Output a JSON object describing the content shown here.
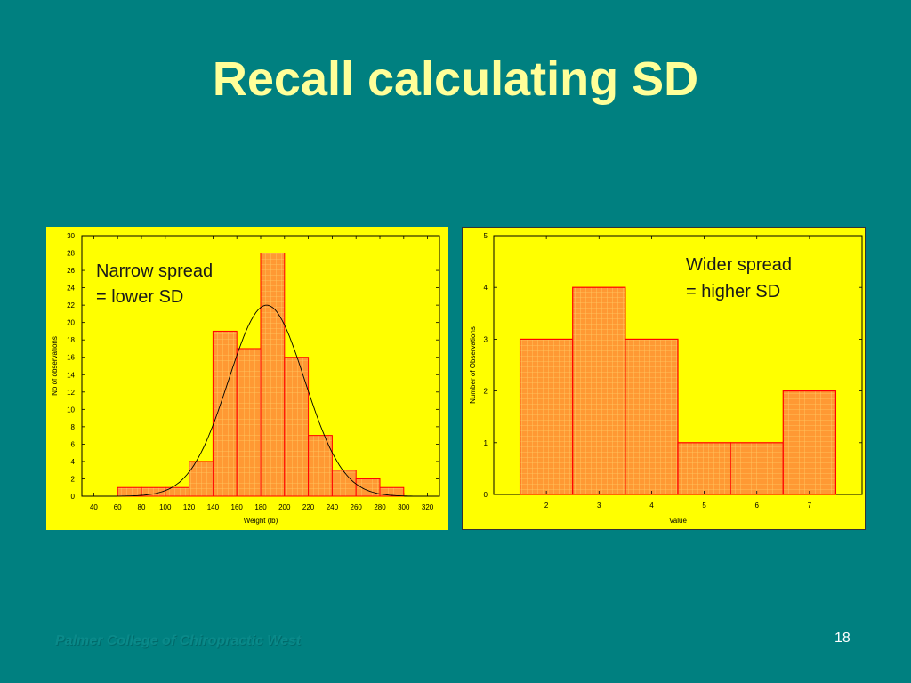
{
  "slide": {
    "title": "Recall calculating SD",
    "footer": "Palmer College of Chiropractic West",
    "page_number": "18"
  },
  "colors": {
    "background": "#008080",
    "title": "#ffff99",
    "panel": "#ffff00",
    "bar_fill": "#ff9933",
    "bar_stroke": "#ff0000"
  },
  "chart_data": [
    {
      "type": "bar",
      "title": "",
      "xlabel": "Weight (lb)",
      "ylabel": "No of observations",
      "annotation": [
        "Narrow spread",
        "= lower SD"
      ],
      "bin_edges": [
        40,
        60,
        80,
        100,
        120,
        140,
        160,
        180,
        200,
        220,
        240,
        260,
        280,
        300
      ],
      "values": [
        0,
        1,
        1,
        1,
        4,
        19,
        17,
        28,
        16,
        7,
        3,
        2,
        1
      ],
      "xlim": [
        30,
        330
      ],
      "ylim": [
        0,
        30
      ],
      "x_ticks": [
        "40",
        "60",
        "80",
        "100",
        "120",
        "140",
        "160",
        "180",
        "200",
        "220",
        "240",
        "260",
        "280",
        "300",
        "320"
      ],
      "y_ticks": [
        "0",
        "2",
        "4",
        "6",
        "8",
        "10",
        "12",
        "14",
        "16",
        "18",
        "20",
        "22",
        "24",
        "26",
        "28",
        "30"
      ],
      "fit_curve": {
        "type": "normal",
        "mean": 185,
        "sd": 32,
        "peak": 22
      }
    },
    {
      "type": "bar",
      "title": "",
      "xlabel": "Value",
      "ylabel": "Number of Observations",
      "annotation": [
        "Wider spread",
        "= higher SD"
      ],
      "categories": [
        "2",
        "3",
        "4",
        "5",
        "6",
        "7"
      ],
      "values": [
        3,
        4,
        3,
        1,
        1,
        2
      ],
      "xlim": [
        1,
        8
      ],
      "ylim": [
        0,
        5
      ],
      "y_ticks": [
        "0",
        "1",
        "2",
        "3",
        "4",
        "5"
      ]
    }
  ]
}
